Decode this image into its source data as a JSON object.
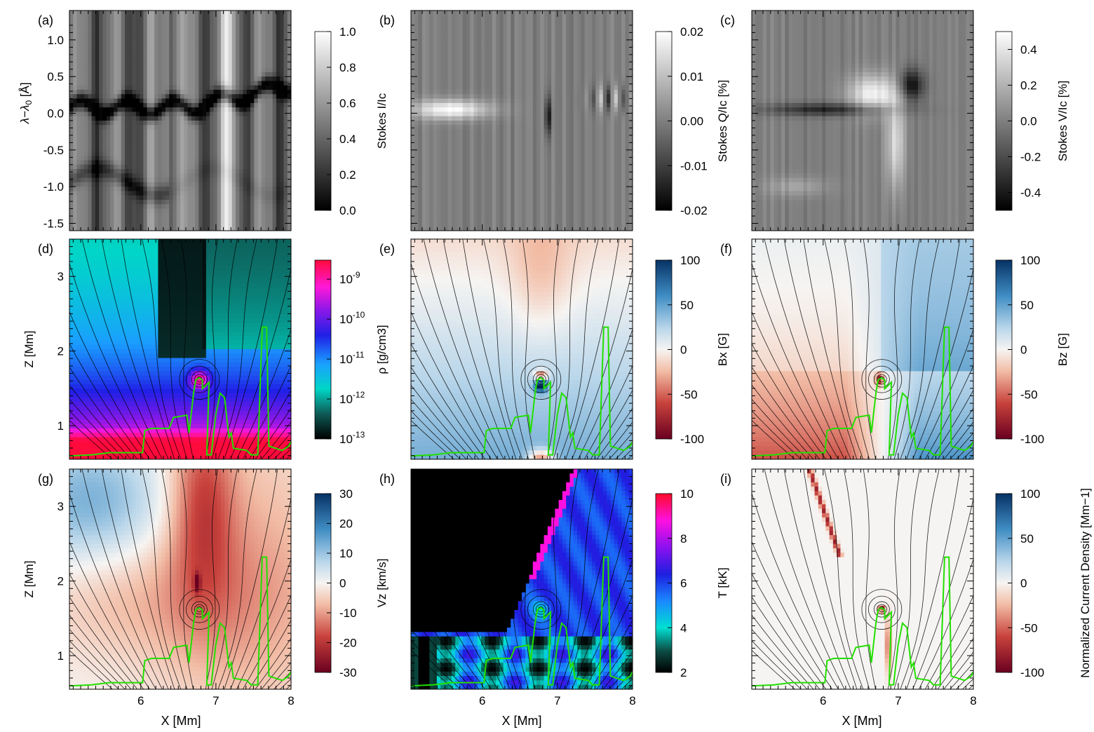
{
  "chart_data": {
    "type": "heatmap",
    "panels": [
      {
        "id": "a",
        "label": "(a)",
        "kind": "spectrum",
        "map": "gray",
        "ylabel": "λ−λ0 [Å]",
        "yticks": [
          "1.0",
          "0.5",
          "0.0",
          "-0.5",
          "-1.0",
          "-1.5"
        ],
        "colorbar": {
          "label": "Stokes I/Ic",
          "ticks": [
            "1.0",
            "0.8",
            "0.6",
            "0.4",
            "0.2",
            "0.0"
          ],
          "range": [
            0,
            1
          ]
        }
      },
      {
        "id": "b",
        "label": "(b)",
        "kind": "spectrum",
        "map": "gray",
        "ylabel": "",
        "yticks": [],
        "colorbar": {
          "label": "Stokes Q/Ic [%]",
          "ticks": [
            "0.02",
            "0.01",
            "0.00",
            "-0.01",
            "-0.02"
          ],
          "range": [
            -0.02,
            0.02
          ]
        }
      },
      {
        "id": "c",
        "label": "(c)",
        "kind": "spectrum",
        "map": "gray",
        "ylabel": "",
        "yticks": [],
        "colorbar": {
          "label": "Stokes V/Ic [%]",
          "ticks": [
            "0.4",
            "0.2",
            "0.0",
            "-0.2",
            "-0.4"
          ],
          "range": [
            -0.5,
            0.5
          ]
        }
      },
      {
        "id": "d",
        "label": "(d)",
        "kind": "map",
        "map": "density",
        "ylabel": "Z [Mm]",
        "yticks": [
          "3",
          "2",
          "1"
        ],
        "colorbar": {
          "label": "ρ [g/cm3]",
          "ticks": [
            "10-9",
            "10-10",
            "10-11",
            "10-12",
            "10-13"
          ],
          "range": [
            1e-13,
            3e-09
          ],
          "log": true
        }
      },
      {
        "id": "e",
        "label": "(e)",
        "kind": "map",
        "map": "diverging",
        "ylabel": "",
        "yticks": [],
        "colorbar": {
          "label": "Bx [G]",
          "ticks": [
            "100",
            "50",
            "0",
            "-50",
            "-100"
          ],
          "range": [
            -100,
            100
          ]
        }
      },
      {
        "id": "f",
        "label": "(f)",
        "kind": "map",
        "map": "diverging",
        "ylabel": "",
        "yticks": [],
        "colorbar": {
          "label": "Bz [G]",
          "ticks": [
            "100",
            "50",
            "0",
            "-50",
            "-100"
          ],
          "range": [
            -100,
            100
          ]
        }
      },
      {
        "id": "g",
        "label": "(g)",
        "kind": "map",
        "map": "diverging",
        "ylabel": "Z [Mm]",
        "yticks": [
          "3",
          "2",
          "1"
        ],
        "colorbar": {
          "label": "Vz [km/s]",
          "ticks": [
            "30",
            "20",
            "10",
            "0",
            "-10",
            "-20",
            "-30"
          ],
          "range": [
            -30,
            30
          ]
        }
      },
      {
        "id": "h",
        "label": "(h)",
        "kind": "map",
        "map": "temperature",
        "ylabel": "",
        "yticks": [],
        "colorbar": {
          "label": "T [kK]",
          "ticks": [
            "10",
            "8",
            "6",
            "4",
            "2"
          ],
          "range": [
            2,
            10
          ]
        }
      },
      {
        "id": "i",
        "label": "(i)",
        "kind": "map",
        "map": "diverging",
        "ylabel": "",
        "yticks": [],
        "colorbar": {
          "label": "Normalized Current Density [Mm−1]",
          "ticks": [
            "100",
            "50",
            "0",
            "-50",
            "-100"
          ],
          "range": [
            -100,
            100
          ]
        }
      }
    ],
    "xlabel": "X [Mm]",
    "xticks": [
      "6",
      "7",
      "8"
    ],
    "xrange": [
      5.05,
      8.0
    ],
    "spectrum_yrange": [
      -1.6,
      1.4
    ],
    "map_zrange": [
      0.55,
      3.5
    ],
    "colors": {
      "contour_lines": "#000000",
      "green_contour": "#22e000"
    }
  }
}
